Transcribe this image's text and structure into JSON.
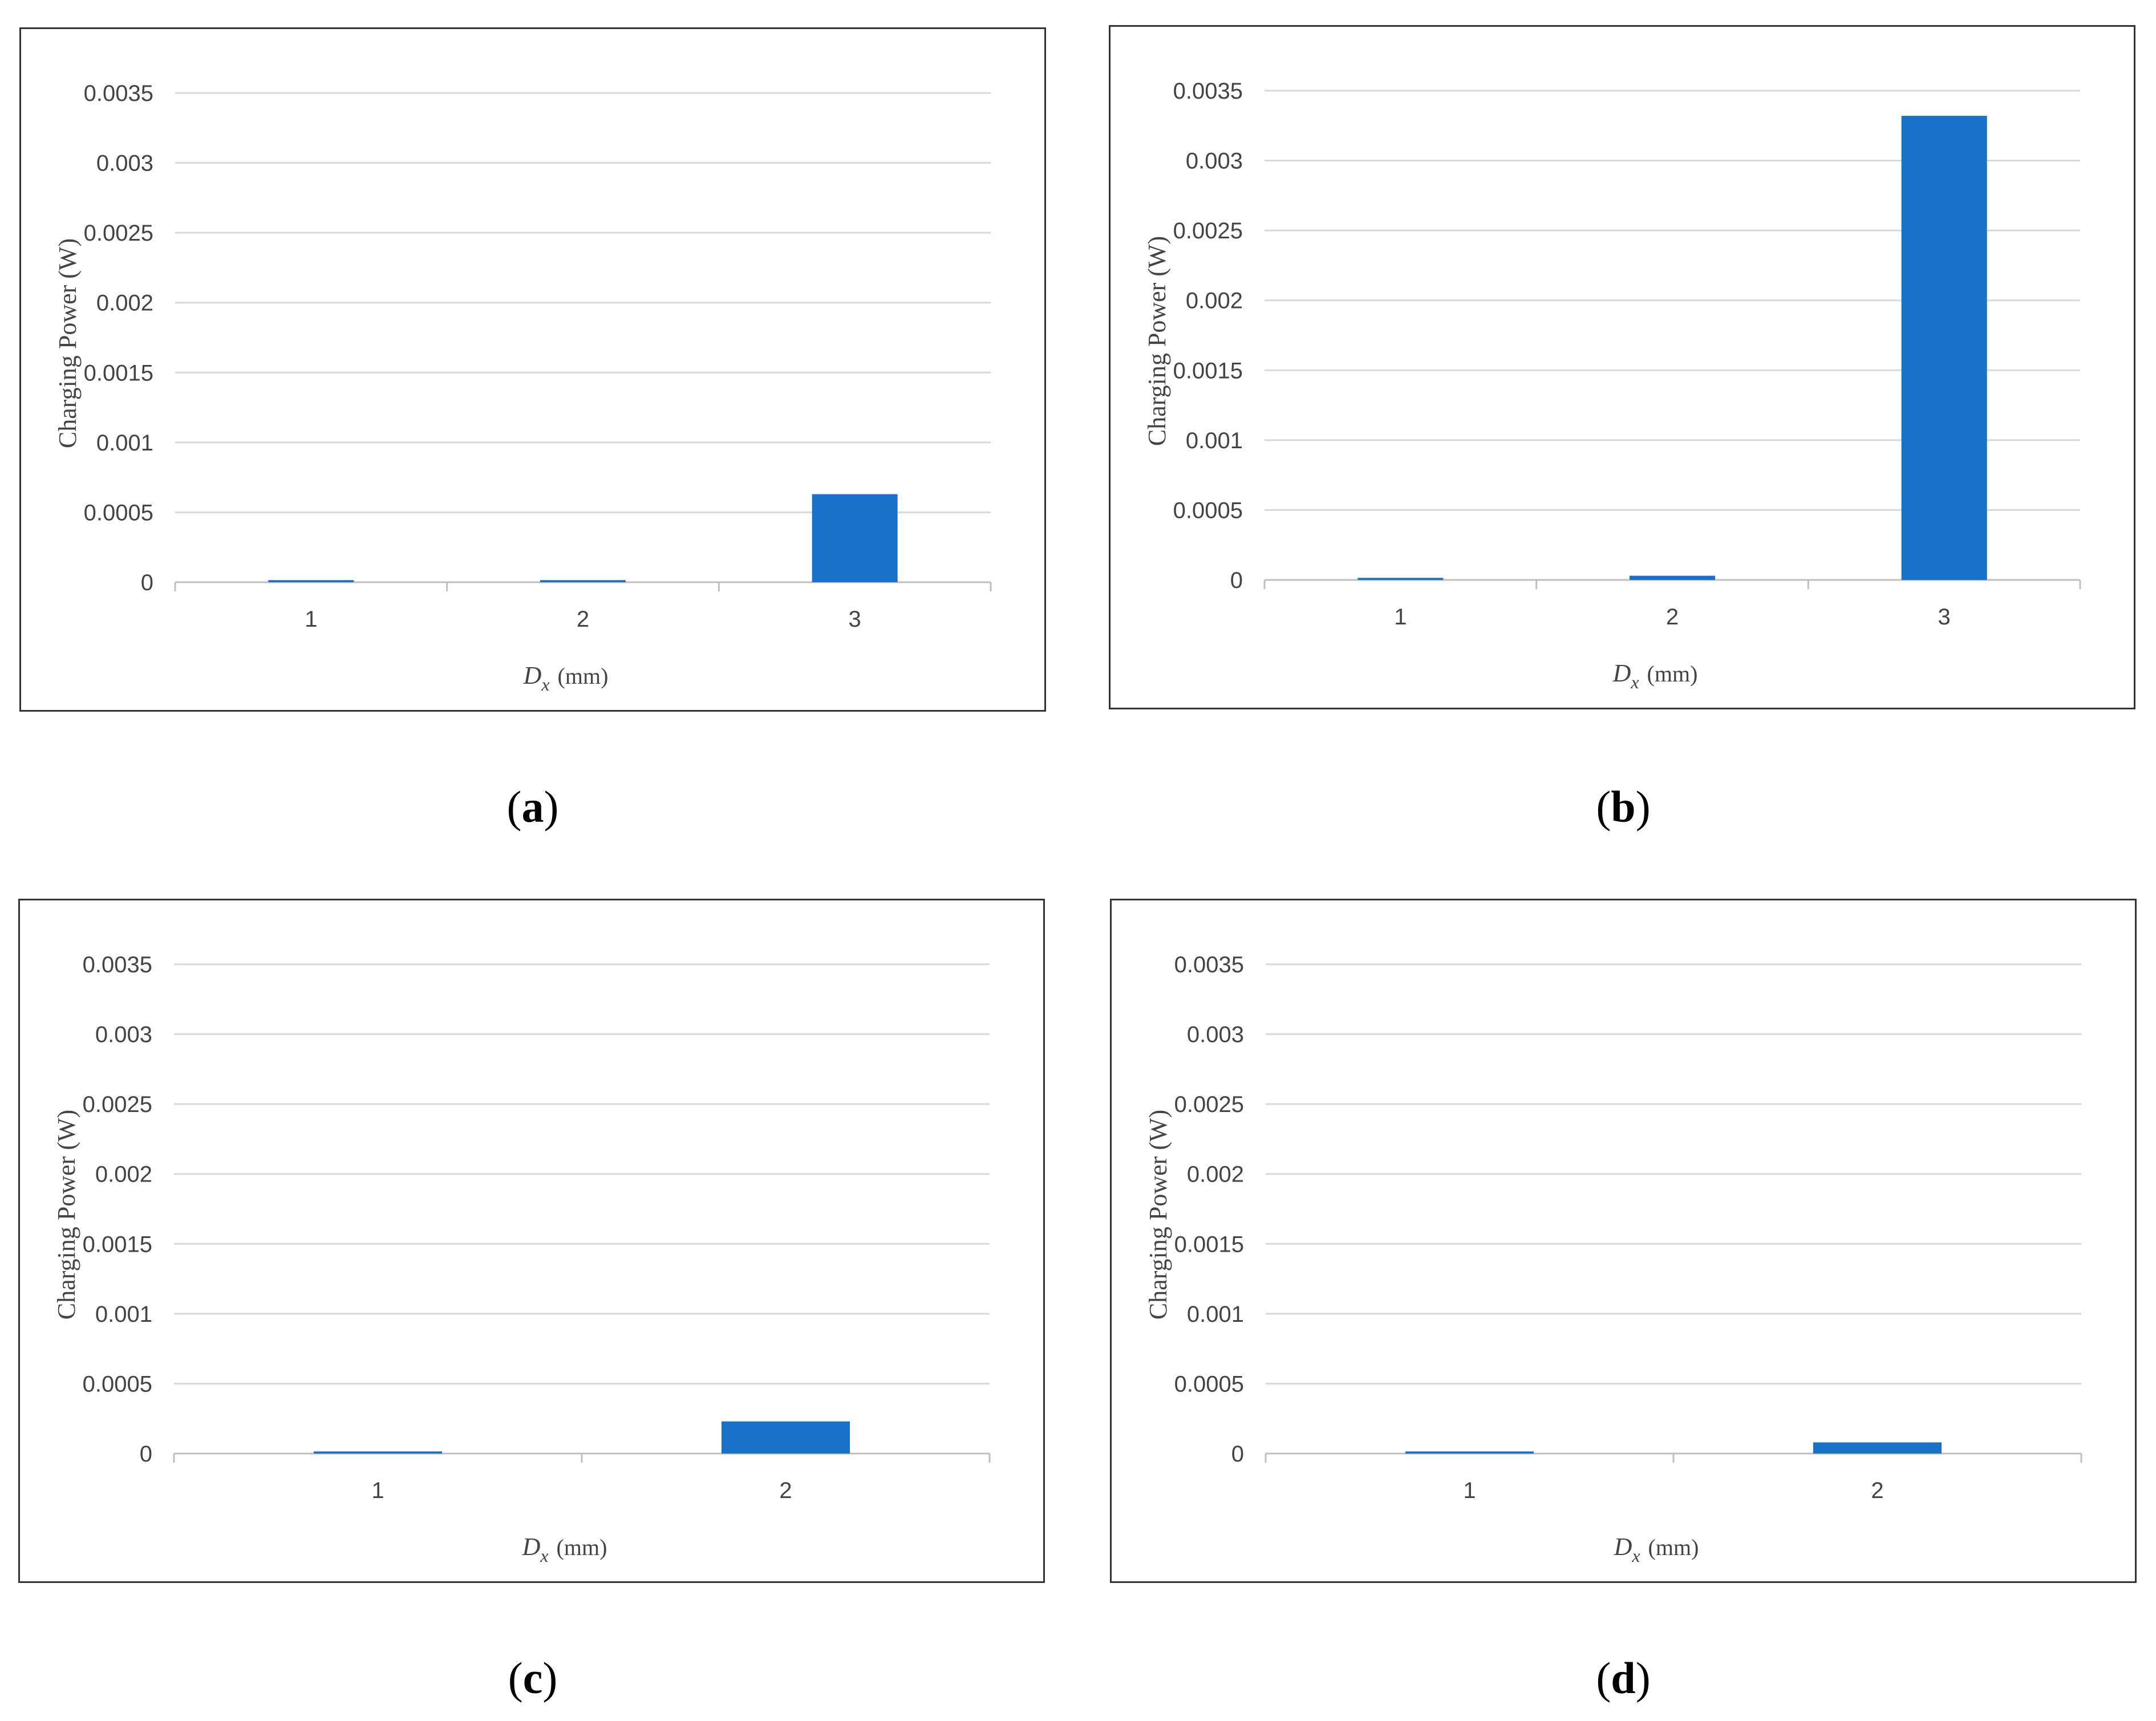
{
  "panels": [
    {
      "caption": "a"
    },
    {
      "caption": "b"
    },
    {
      "caption": "c"
    },
    {
      "caption": "d"
    }
  ],
  "chart_data": [
    {
      "type": "bar",
      "categories": [
        "1",
        "2",
        "3"
      ],
      "values": [
        1.5e-05,
        1.5e-05,
        0.00063
      ],
      "ylabel": "Charging Power (W)",
      "xlabel_var": "D",
      "xlabel_sub": "x",
      "xlabel_unit": "(mm)",
      "ylim": [
        0,
        0.0035
      ],
      "yticks": [
        "0",
        "0.0005",
        "0.001",
        "0.0015",
        "0.002",
        "0.0025",
        "0.003",
        "0.0035"
      ],
      "grid": true,
      "bar_color": "#1971C9"
    },
    {
      "type": "bar",
      "categories": [
        "1",
        "2",
        "3"
      ],
      "values": [
        1.5e-05,
        3e-05,
        0.00332
      ],
      "ylabel": "Charging Power (W)",
      "xlabel_var": "D",
      "xlabel_sub": "x",
      "xlabel_unit": "(mm)",
      "ylim": [
        0,
        0.0035
      ],
      "yticks": [
        "0",
        "0.0005",
        "0.001",
        "0.0015",
        "0.002",
        "0.0025",
        "0.003",
        "0.0035"
      ],
      "grid": true,
      "bar_color": "#1971C9"
    },
    {
      "type": "bar",
      "categories": [
        "1",
        "2"
      ],
      "values": [
        1.5e-05,
        0.00023
      ],
      "ylabel": "Charging Power (W)",
      "xlabel_var": "D",
      "xlabel_sub": "x",
      "xlabel_unit": "(mm)",
      "ylim": [
        0,
        0.0035
      ],
      "yticks": [
        "0",
        "0.0005",
        "0.001",
        "0.0015",
        "0.002",
        "0.0025",
        "0.003",
        "0.0035"
      ],
      "grid": true,
      "bar_color": "#1971C9"
    },
    {
      "type": "bar",
      "categories": [
        "1",
        "2"
      ],
      "values": [
        1.5e-05,
        8e-05
      ],
      "ylabel": "Charging Power (W)",
      "xlabel_var": "D",
      "xlabel_sub": "x",
      "xlabel_unit": "(mm)",
      "ylim": [
        0,
        0.0035
      ],
      "yticks": [
        "0",
        "0.0005",
        "0.001",
        "0.0015",
        "0.002",
        "0.0025",
        "0.003",
        "0.0035"
      ],
      "grid": true,
      "bar_color": "#1971C9"
    }
  ]
}
